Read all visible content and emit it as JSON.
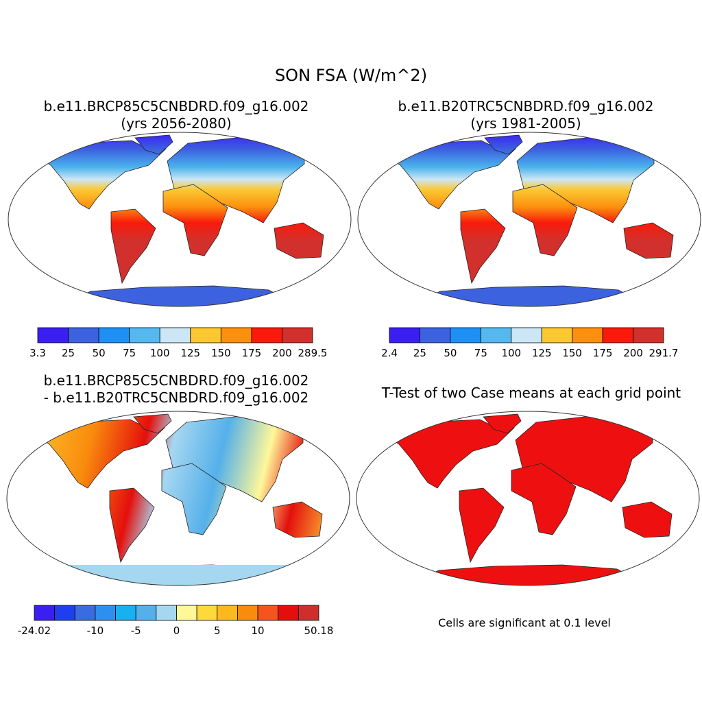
{
  "title": "SON FSA (W/m^2)",
  "panels": [
    {
      "title_lines": [
        "b.e11.BRCP85C5CNBDRD.f09_g16.002",
        "(yrs 2056-2080)"
      ],
      "colorbar": {
        "colors": [
          "#3a1ef2",
          "#3d62e0",
          "#1e90f5",
          "#55b8ee",
          "#cce6f6",
          "#fcc832",
          "#fd8f0e",
          "#f91a0c",
          "#d2302c"
        ],
        "labels": [
          "3.3",
          "25",
          "50",
          "75",
          "100",
          "125",
          "150",
          "175",
          "200",
          "289.5"
        ]
      }
    },
    {
      "title_lines": [
        "b.e11.B20TRC5CNBDRD.f09_g16.002",
        "(yrs 1981-2005)"
      ],
      "colorbar": {
        "colors": [
          "#3a1ef2",
          "#3d62e0",
          "#1e90f5",
          "#55b8ee",
          "#cce6f6",
          "#fcc832",
          "#fd8f0e",
          "#f91a0c",
          "#d2302c"
        ],
        "labels": [
          "2.4",
          "25",
          "50",
          "75",
          "100",
          "125",
          "150",
          "175",
          "200",
          "291.7"
        ]
      }
    },
    {
      "title_lines": [
        "b.e11.BRCP85C5CNBDRD.f09_g16.002",
        "- b.e11.B20TRC5CNBDRD.f09_g16.002"
      ],
      "colorbar": {
        "colors": [
          "#3a1ef2",
          "#1e3ff0",
          "#3b6cdf",
          "#2d90f0",
          "#18b0f0",
          "#55b0ea",
          "#a6d7f0",
          "#fff79a",
          "#fed93a",
          "#fdb81e",
          "#f98b0d",
          "#f6541c",
          "#e40f0d",
          "#cf2f2c"
        ],
        "labels": [
          "-24.02",
          null,
          null,
          "-10",
          null,
          "-5",
          null,
          "0",
          null,
          "5",
          null,
          "10",
          null,
          null,
          "50.18"
        ]
      }
    },
    {
      "title_lines": [
        "T-Test of two Case means at each grid point"
      ],
      "note": "Cells are significant at 0.1 level"
    }
  ]
}
